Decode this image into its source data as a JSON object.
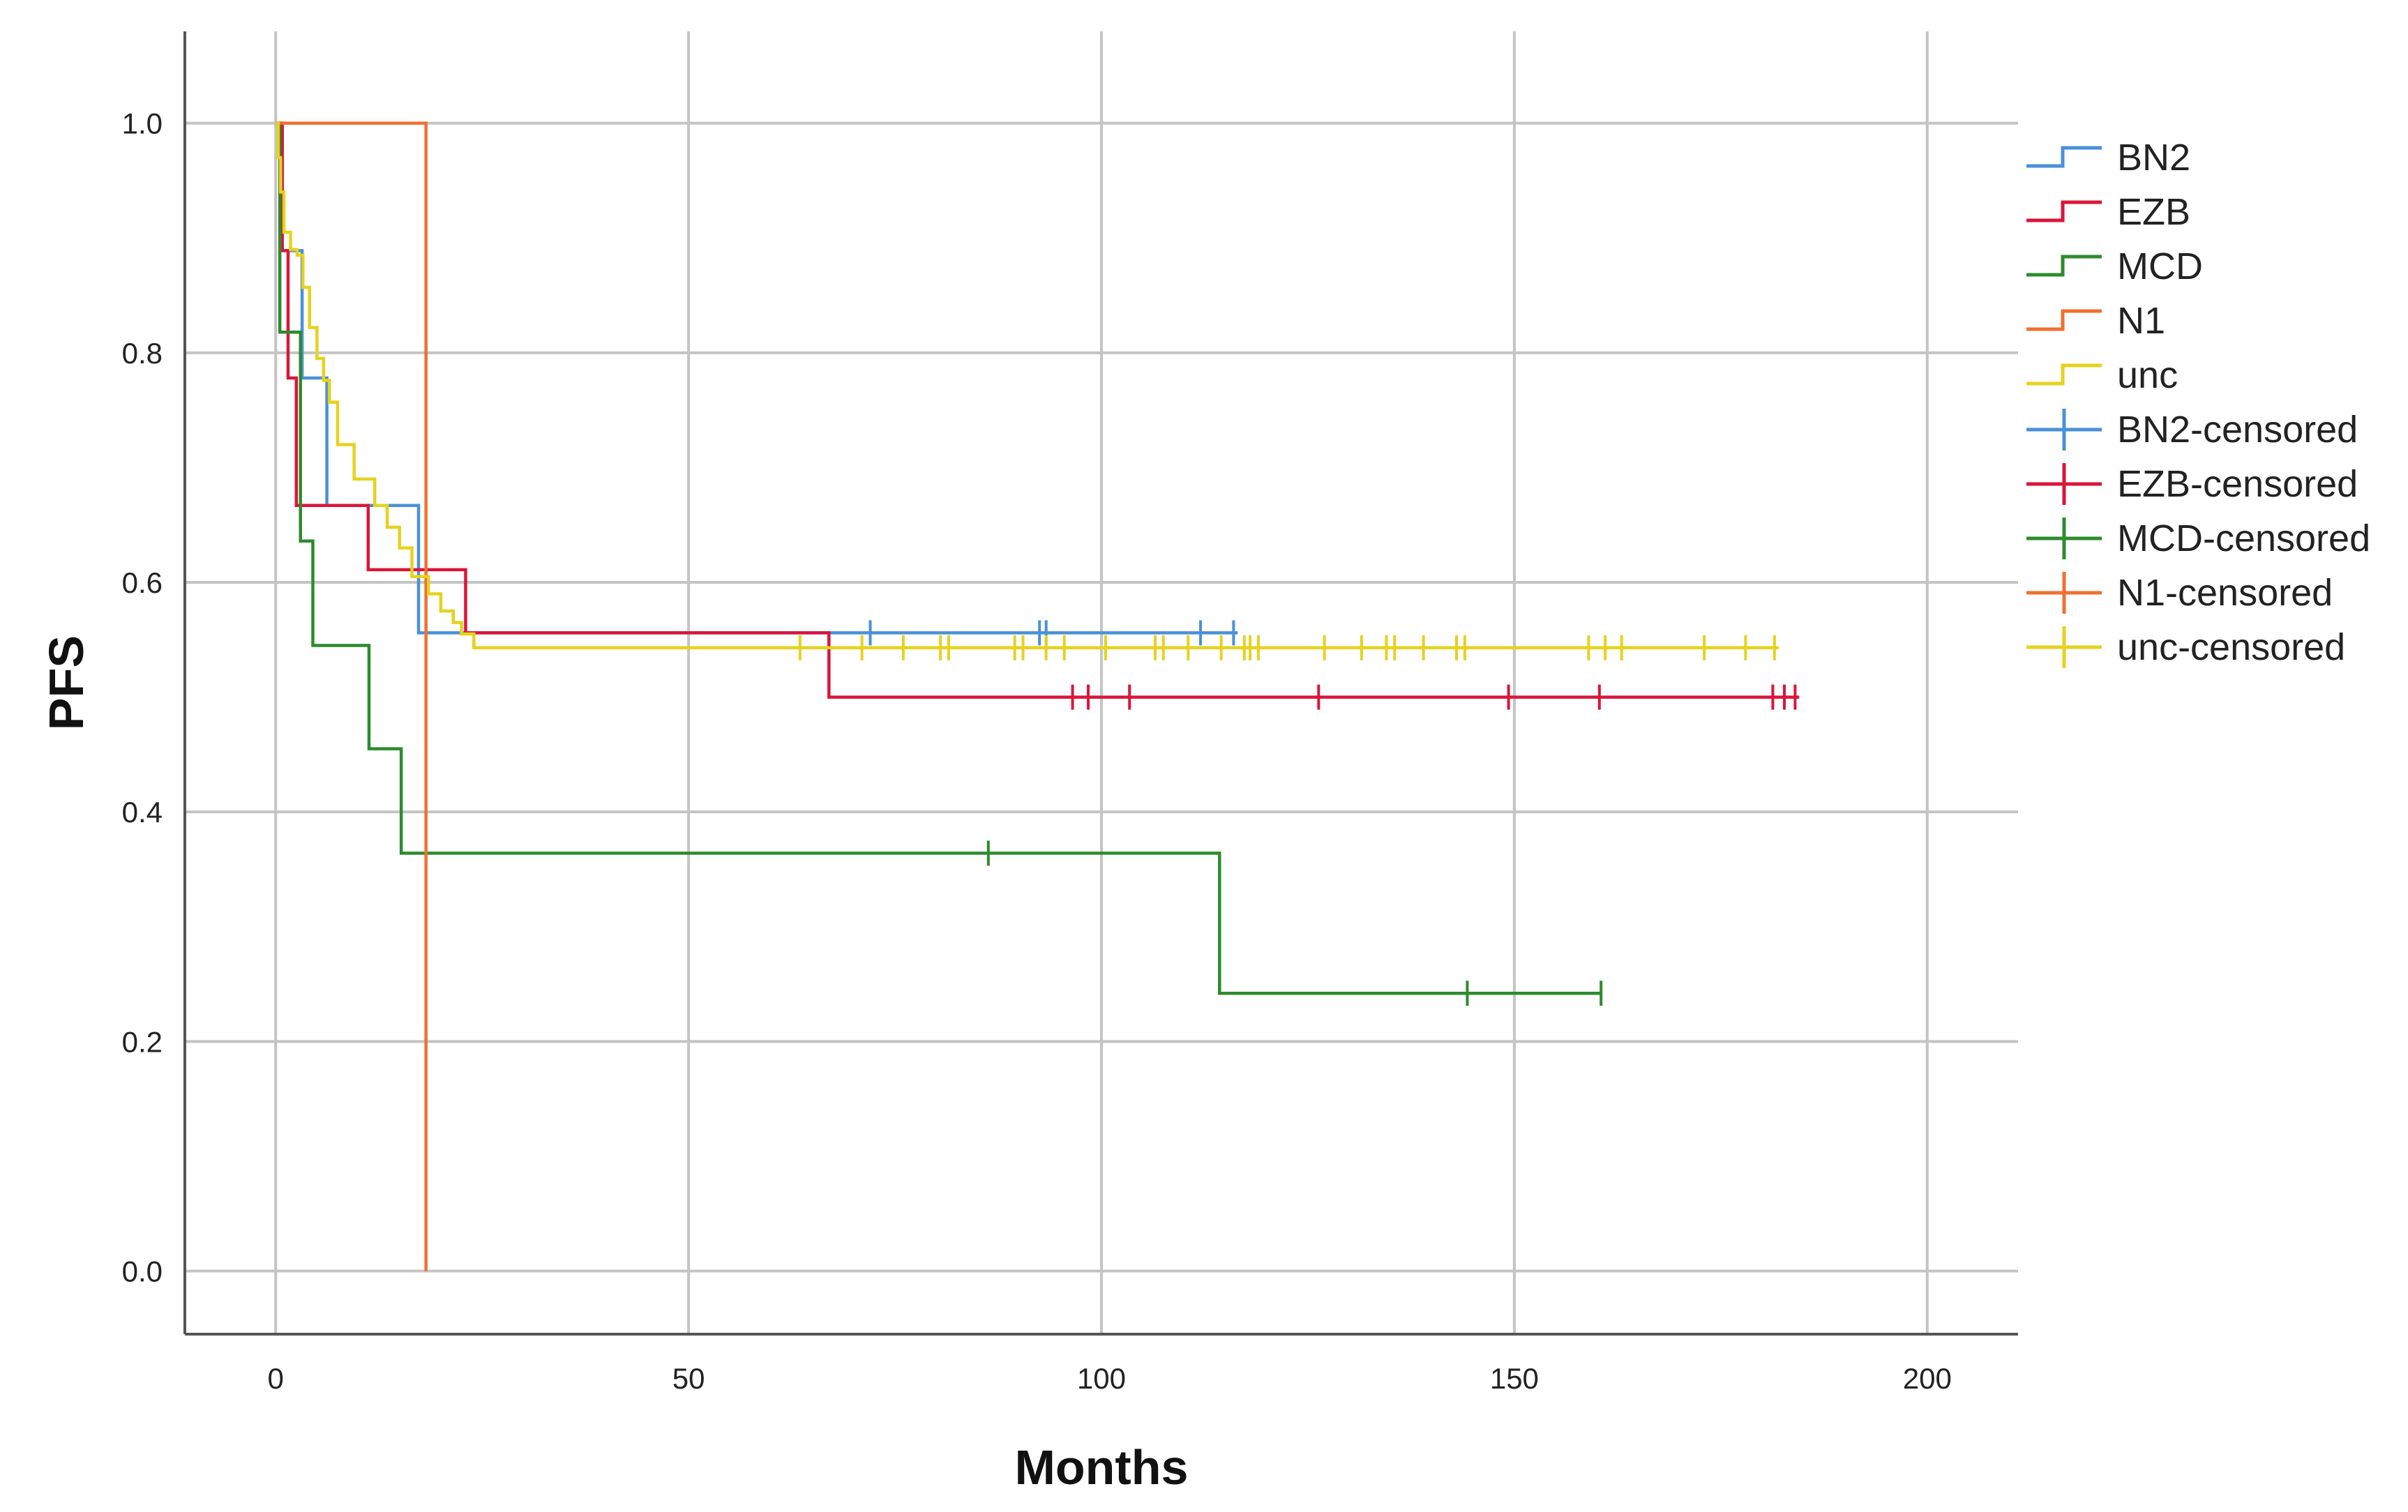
{
  "chart_data": {
    "type": "line",
    "subtype": "kaplan-meier step",
    "xlabel": "Months",
    "ylabel": "PFS",
    "xlim": [
      -11,
      211
    ],
    "ylim": [
      -0.055,
      1.08
    ],
    "xticks": [
      0,
      50,
      100,
      150,
      200
    ],
    "yticks": [
      0.0,
      0.2,
      0.4,
      0.6,
      0.8,
      1.0
    ],
    "ytick_labels": [
      "0.0",
      "0.2",
      "0.4",
      "0.6",
      "0.8",
      "1.0"
    ],
    "grid": true,
    "legend_position": "right",
    "legend": [
      "BN2",
      "EZB",
      "MCD",
      "N1",
      "unc",
      "BN2-censored",
      "EZB-censored",
      "MCD-censored",
      "N1-censored",
      "unc-censored"
    ],
    "series": [
      {
        "name": "BN2",
        "color": "#4a90d9",
        "steps": [
          [
            0,
            1.0
          ],
          [
            0.6,
            0.889
          ],
          [
            3.2,
            0.778
          ],
          [
            6.2,
            0.667
          ],
          [
            17.3,
            0.556
          ],
          [
            116.5,
            0.556
          ]
        ],
        "censored": [
          [
            72.0,
            0.556
          ],
          [
            92.5,
            0.556
          ],
          [
            93.3,
            0.556
          ],
          [
            112.0,
            0.556
          ],
          [
            116.0,
            0.556
          ]
        ]
      },
      {
        "name": "EZB",
        "color": "#d9163a",
        "steps": [
          [
            0,
            1.0
          ],
          [
            0.8,
            0.889
          ],
          [
            1.5,
            0.778
          ],
          [
            2.5,
            0.667
          ],
          [
            11.2,
            0.611
          ],
          [
            23.0,
            0.556
          ],
          [
            67.0,
            0.5
          ],
          [
            184.5,
            0.5
          ]
        ],
        "censored": [
          [
            96.5,
            0.5
          ],
          [
            98.4,
            0.5
          ],
          [
            103.4,
            0.5
          ],
          [
            126.3,
            0.5
          ],
          [
            149.3,
            0.5
          ],
          [
            160.3,
            0.5
          ],
          [
            181.3,
            0.5
          ],
          [
            182.7,
            0.5
          ],
          [
            184.0,
            0.5
          ]
        ]
      },
      {
        "name": "MCD",
        "color": "#2e8b2e",
        "steps": [
          [
            0,
            1.0
          ],
          [
            0.5,
            0.818
          ],
          [
            3.0,
            0.636
          ],
          [
            4.5,
            0.545
          ],
          [
            11.3,
            0.455
          ],
          [
            15.2,
            0.364
          ],
          [
            114.3,
            0.242
          ],
          [
            160.5,
            0.242
          ]
        ],
        "censored": [
          [
            86.3,
            0.364
          ],
          [
            144.3,
            0.242
          ],
          [
            160.5,
            0.242
          ]
        ]
      },
      {
        "name": "N1",
        "color": "#f07030",
        "steps": [
          [
            0,
            1.0
          ],
          [
            18.2,
            0.0
          ]
        ],
        "censored": []
      },
      {
        "name": "unc",
        "color": "#e6d21e",
        "steps": [
          [
            0,
            1.0
          ],
          [
            0.3,
            0.97
          ],
          [
            0.6,
            0.94
          ],
          [
            1.0,
            0.905
          ],
          [
            1.8,
            0.89
          ],
          [
            2.6,
            0.885
          ],
          [
            3.3,
            0.857
          ],
          [
            4.1,
            0.822
          ],
          [
            5.0,
            0.795
          ],
          [
            5.8,
            0.776
          ],
          [
            6.5,
            0.757
          ],
          [
            7.5,
            0.72
          ],
          [
            9.5,
            0.69
          ],
          [
            12.0,
            0.667
          ],
          [
            13.5,
            0.648
          ],
          [
            15.0,
            0.63
          ],
          [
            16.5,
            0.605
          ],
          [
            18.5,
            0.59
          ],
          [
            20.0,
            0.575
          ],
          [
            21.5,
            0.565
          ],
          [
            22.5,
            0.555
          ],
          [
            24.0,
            0.543
          ],
          [
            182.0,
            0.543
          ]
        ],
        "censored": [
          [
            63.5,
            0.543
          ],
          [
            71.0,
            0.543
          ],
          [
            76.0,
            0.543
          ],
          [
            80.5,
            0.543
          ],
          [
            81.5,
            0.543
          ],
          [
            89.5,
            0.543
          ],
          [
            90.5,
            0.543
          ],
          [
            93.3,
            0.543
          ],
          [
            95.5,
            0.543
          ],
          [
            100.5,
            0.543
          ],
          [
            106.5,
            0.543
          ],
          [
            107.5,
            0.543
          ],
          [
            110.5,
            0.543
          ],
          [
            114.5,
            0.543
          ],
          [
            117.3,
            0.543
          ],
          [
            118.0,
            0.543
          ],
          [
            119.0,
            0.543
          ],
          [
            127.0,
            0.543
          ],
          [
            131.5,
            0.543
          ],
          [
            134.5,
            0.543
          ],
          [
            135.5,
            0.543
          ],
          [
            139.0,
            0.543
          ],
          [
            143.0,
            0.543
          ],
          [
            144.0,
            0.543
          ],
          [
            159.0,
            0.543
          ],
          [
            161.0,
            0.543
          ],
          [
            163.0,
            0.543
          ],
          [
            173.0,
            0.543
          ],
          [
            178.0,
            0.543
          ],
          [
            181.5,
            0.543
          ]
        ]
      }
    ]
  }
}
